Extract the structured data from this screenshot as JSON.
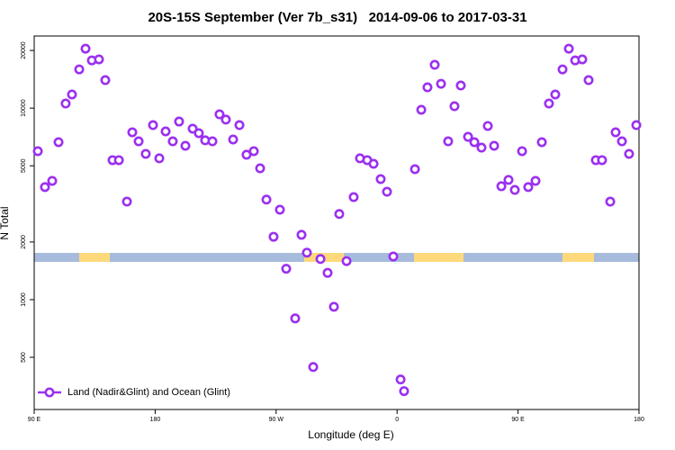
{
  "chart_data": {
    "type": "scatter",
    "title": "20S-15S September (Ver 7b_s31)   2014-09-06 to 2017-03-31",
    "x_label": "Longitude (deg E)",
    "y_label": "N Total",
    "log_y": true,
    "legend": "bottom-left",
    "xlim": [
      90,
      540
    ],
    "ylim": [
      267,
      23800
    ],
    "xticks": [
      {
        "value": 90,
        "label": "90 E"
      },
      180,
      {
        "value": 270,
        "label": "90 W"
      },
      {
        "value": 360,
        "label": "0"
      },
      {
        "value": 450,
        "label": "90 E"
      },
      {
        "value": 540,
        "label": "180"
      }
    ],
    "yticks": [
      500,
      1000,
      2000,
      5000,
      10000,
      20000
    ],
    "series": [
      {
        "name": "Land (Nadir&Glint) and Ocean (Glint)",
        "color": "#9b30f0",
        "x": [
          92.7,
          98,
          103.4,
          108.1,
          113.4,
          118.1,
          123.5,
          128.2,
          132.9,
          138.2,
          142.9,
          148.3,
          153,
          159,
          163,
          167.7,
          173,
          178.4,
          183.1,
          187.8,
          193.1,
          197.8,
          202.5,
          207.9,
          212.5,
          217.2,
          222.6,
          227.9,
          232.6,
          238,
          242.7,
          248,
          253.4,
          258.1,
          262.8,
          268.1,
          272.8,
          277.5,
          284.2,
          288.9,
          292.9,
          297.6,
          303,
          308.3,
          313,
          317,
          322.4,
          327.7,
          332.4,
          337.8,
          342.5,
          347.8,
          352.5,
          357.2,
          362.6,
          365.2,
          373.3,
          378,
          382.6,
          388,
          392.7,
          398,
          402.7,
          407.4,
          412.8,
          417.5,
          422.8,
          427.5,
          432.2,
          437.6,
          442.9,
          447.6,
          453,
          457.6,
          463,
          467.7,
          473,
          477.7,
          483.1,
          487.8,
          492.5,
          497.8,
          502.5,
          507.9,
          512.5,
          518.6,
          522.6,
          527.3,
          532.6,
          538
        ],
        "values": [
          5960,
          3870,
          4170,
          6640,
          10570,
          11780,
          15930,
          20430,
          17750,
          17970,
          14000,
          5350,
          5350,
          3250,
          7480,
          6710,
          5770,
          8150,
          5470,
          7560,
          6710,
          8510,
          6360,
          7810,
          7400,
          6790,
          6710,
          9280,
          8710,
          6860,
          8150,
          5710,
          5960,
          4850,
          3330,
          2130,
          2950,
          1450,
          798,
          2180,
          1760,
          445,
          1630,
          1380,
          918,
          2800,
          1590,
          3430,
          5470,
          5350,
          5120,
          4260,
          3660,
          1680,
          383,
          333,
          4800,
          9800,
          12840,
          16830,
          13400,
          6710,
          10230,
          13120,
          7080,
          6640,
          6220,
          8070,
          6360,
          3910,
          4220,
          3740,
          5960,
          3870,
          4170,
          6640,
          10570,
          11780,
          15930,
          20430,
          17750,
          17970,
          14000,
          5350,
          5350,
          3250,
          7480,
          6710,
          5770,
          8150
        ]
      }
    ]
  }
}
